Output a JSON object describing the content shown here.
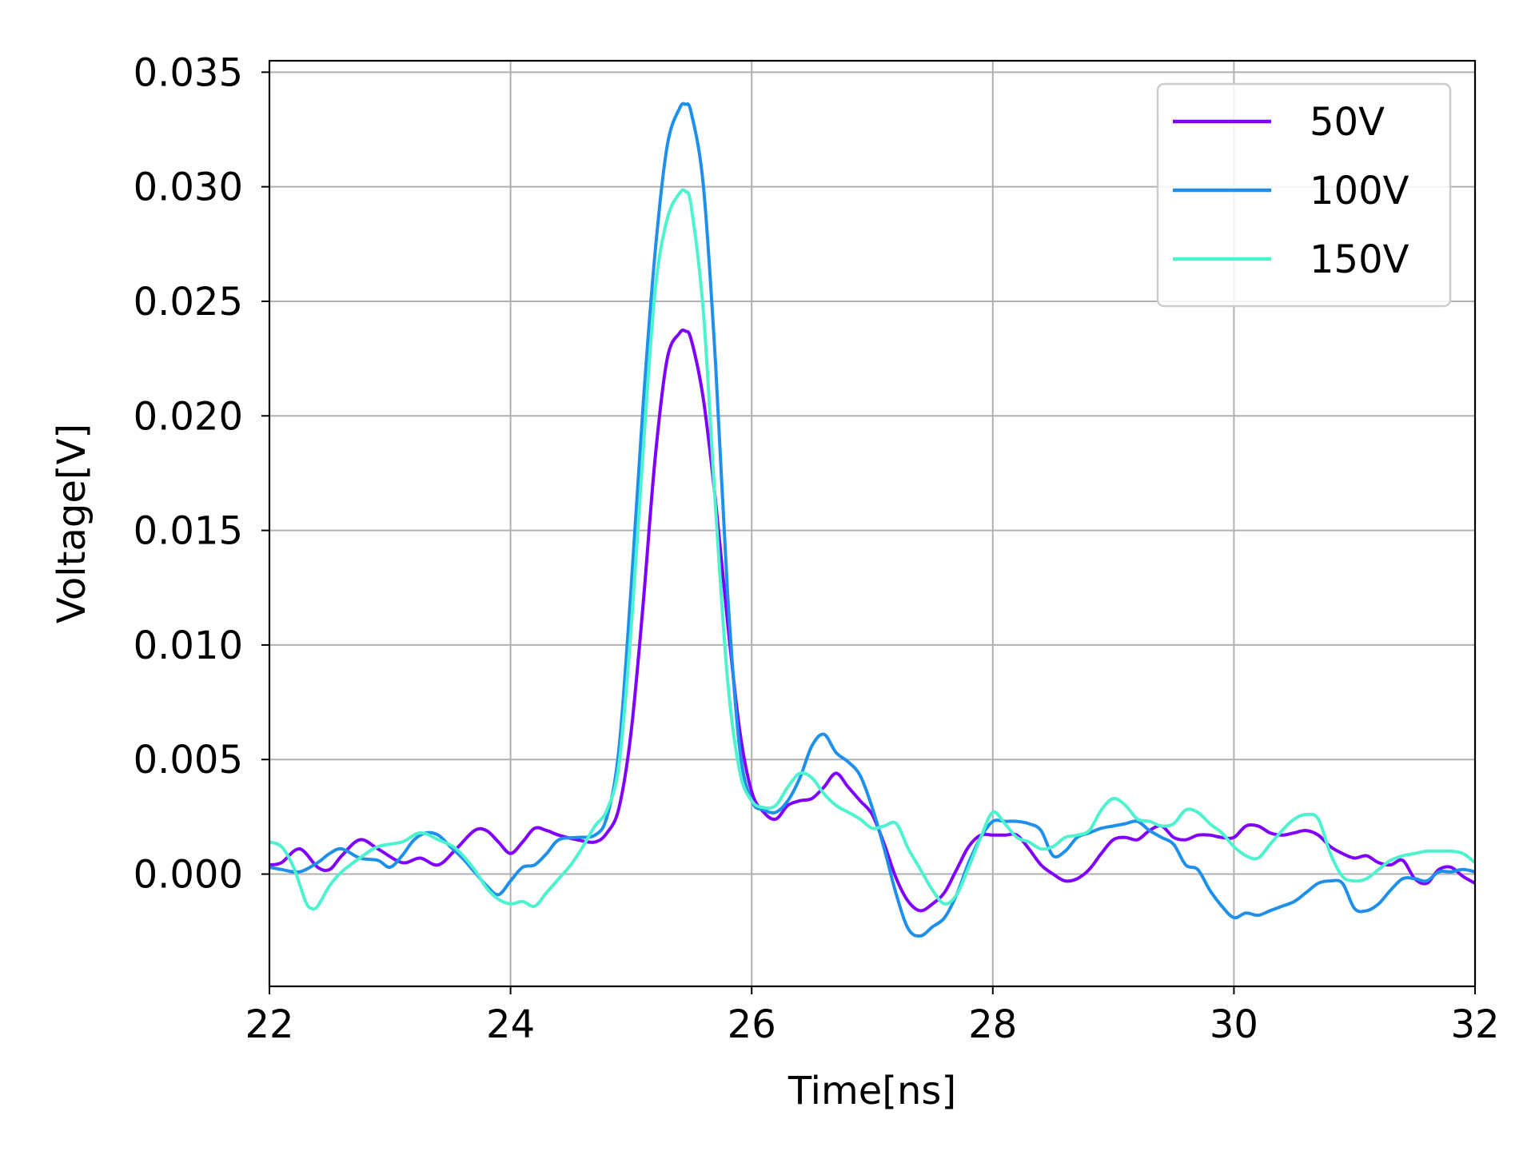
{
  "chart_data": {
    "type": "line",
    "xlabel": "Time[ns]",
    "ylabel": "Voltage[V]",
    "xlim": [
      22,
      32
    ],
    "ylim": [
      -0.0049,
      0.0355
    ],
    "xticks": [
      22,
      24,
      26,
      28,
      30,
      32
    ],
    "xtick_labels": [
      "22",
      "24",
      "26",
      "28",
      "30",
      "32"
    ],
    "yticks": [
      0.0,
      0.005,
      0.01,
      0.015,
      0.02,
      0.025,
      0.03,
      0.035
    ],
    "ytick_labels": [
      "0.000",
      "0.005",
      "0.010",
      "0.015",
      "0.020",
      "0.025",
      "0.030",
      "0.035"
    ],
    "grid": true,
    "legend_position": "top-right",
    "series": [
      {
        "name": "50V",
        "color": "#8000ff",
        "x": [
          22.0,
          22.1,
          22.25,
          22.4,
          22.5,
          22.6,
          22.75,
          22.9,
          23.1,
          23.25,
          23.4,
          23.55,
          23.7,
          23.8,
          23.9,
          24.0,
          24.1,
          24.2,
          24.3,
          24.4,
          24.55,
          24.7,
          24.8,
          24.9,
          25.0,
          25.1,
          25.2,
          25.3,
          25.4,
          25.45,
          25.5,
          25.6,
          25.7,
          25.8,
          25.9,
          26.0,
          26.1,
          26.2,
          26.3,
          26.4,
          26.5,
          26.6,
          26.7,
          26.8,
          26.9,
          27.0,
          27.1,
          27.2,
          27.3,
          27.4,
          27.5,
          27.6,
          27.7,
          27.8,
          27.9,
          28.0,
          28.1,
          28.2,
          28.3,
          28.4,
          28.5,
          28.6,
          28.7,
          28.8,
          28.9,
          29.0,
          29.1,
          29.2,
          29.3,
          29.4,
          29.5,
          29.6,
          29.7,
          29.8,
          29.9,
          30.0,
          30.1,
          30.2,
          30.3,
          30.4,
          30.5,
          30.6,
          30.7,
          30.8,
          30.9,
          31.0,
          31.1,
          31.2,
          31.3,
          31.4,
          31.5,
          31.6,
          31.7,
          31.8,
          31.9,
          32.0
        ],
        "y": [
          0.0004,
          0.0005,
          0.0011,
          0.0003,
          0.0002,
          0.0008,
          0.0015,
          0.0011,
          0.0005,
          0.0007,
          0.0004,
          0.0011,
          0.0019,
          0.0019,
          0.0014,
          0.0009,
          0.0014,
          0.002,
          0.0019,
          0.0017,
          0.0015,
          0.0014,
          0.0018,
          0.0029,
          0.0062,
          0.0118,
          0.0182,
          0.0225,
          0.0236,
          0.0237,
          0.0233,
          0.0207,
          0.0163,
          0.011,
          0.0063,
          0.0036,
          0.0027,
          0.0024,
          0.003,
          0.0032,
          0.0033,
          0.0038,
          0.0044,
          0.0038,
          0.0032,
          0.0026,
          0.0013,
          -0.0002,
          -0.0012,
          -0.0016,
          -0.0013,
          -0.0008,
          0.0002,
          0.0012,
          0.0017,
          0.0017,
          0.0017,
          0.0017,
          0.0011,
          0.0004,
          0.0,
          -0.0003,
          -0.0002,
          0.0002,
          0.0009,
          0.0015,
          0.0016,
          0.0015,
          0.0019,
          0.0021,
          0.0016,
          0.0015,
          0.0017,
          0.0017,
          0.0016,
          0.0016,
          0.0021,
          0.0021,
          0.0018,
          0.0017,
          0.0018,
          0.0019,
          0.0017,
          0.0012,
          0.0009,
          0.0007,
          0.0008,
          0.0005,
          0.0004,
          0.0006,
          -0.0002,
          -0.0004,
          0.0002,
          0.0003,
          -0.0001,
          -0.0004
        ]
      },
      {
        "name": "100V",
        "color": "#1e90ec",
        "x": [
          22.0,
          22.1,
          22.25,
          22.4,
          22.5,
          22.6,
          22.75,
          22.9,
          23.0,
          23.1,
          23.2,
          23.3,
          23.4,
          23.5,
          23.6,
          23.7,
          23.8,
          23.9,
          24.0,
          24.1,
          24.2,
          24.3,
          24.4,
          24.55,
          24.7,
          24.8,
          24.9,
          25.0,
          25.1,
          25.2,
          25.3,
          25.4,
          25.45,
          25.5,
          25.6,
          25.7,
          25.8,
          25.9,
          26.0,
          26.1,
          26.2,
          26.3,
          26.4,
          26.5,
          26.6,
          26.7,
          26.8,
          26.9,
          27.0,
          27.1,
          27.2,
          27.3,
          27.4,
          27.5,
          27.6,
          27.7,
          27.8,
          27.9,
          28.0,
          28.1,
          28.2,
          28.3,
          28.4,
          28.5,
          28.6,
          28.7,
          28.8,
          28.9,
          29.0,
          29.1,
          29.2,
          29.3,
          29.4,
          29.5,
          29.6,
          29.7,
          29.8,
          29.9,
          30.0,
          30.1,
          30.2,
          30.3,
          30.4,
          30.5,
          30.6,
          30.7,
          30.8,
          30.9,
          31.0,
          31.1,
          31.2,
          31.3,
          31.4,
          31.5,
          31.6,
          31.7,
          31.8,
          31.9,
          32.0
        ],
        "y": [
          0.0003,
          0.0002,
          0.0001,
          0.0005,
          0.0009,
          0.0011,
          0.0007,
          0.0006,
          0.0003,
          0.0008,
          0.0015,
          0.0018,
          0.0017,
          0.0012,
          0.0007,
          0.0001,
          -0.0005,
          -0.0009,
          -0.0003,
          0.0003,
          0.0004,
          0.0009,
          0.0015,
          0.0016,
          0.0017,
          0.0025,
          0.0055,
          0.0125,
          0.0205,
          0.0272,
          0.0318,
          0.0334,
          0.0336,
          0.0332,
          0.03,
          0.0223,
          0.0123,
          0.0055,
          0.0032,
          0.0028,
          0.0027,
          0.0032,
          0.0042,
          0.0056,
          0.0061,
          0.0053,
          0.0049,
          0.0043,
          0.0029,
          0.0011,
          -0.0009,
          -0.0024,
          -0.0027,
          -0.0023,
          -0.0019,
          -0.0009,
          0.0005,
          0.0016,
          0.0023,
          0.0023,
          0.0023,
          0.0022,
          0.0019,
          0.0008,
          0.001,
          0.0016,
          0.0018,
          0.002,
          0.0021,
          0.0022,
          0.0023,
          0.0019,
          0.0016,
          0.0013,
          0.0004,
          0.0002,
          -0.0007,
          -0.0014,
          -0.0019,
          -0.0017,
          -0.0018,
          -0.0016,
          -0.0014,
          -0.0012,
          -0.0008,
          -0.0004,
          -0.0003,
          -0.0004,
          -0.0015,
          -0.0016,
          -0.0013,
          -0.0007,
          -0.0002,
          -0.0002,
          -0.0003,
          0.0001,
          0.0001,
          0.0002,
          0.0001
        ]
      },
      {
        "name": "150V",
        "color": "#4df3ce",
        "x": [
          22.0,
          22.1,
          22.2,
          22.3,
          22.35,
          22.4,
          22.5,
          22.6,
          22.75,
          22.9,
          23.1,
          23.25,
          23.4,
          23.55,
          23.7,
          23.8,
          23.9,
          24.0,
          24.1,
          24.2,
          24.3,
          24.4,
          24.5,
          24.6,
          24.7,
          24.8,
          24.9,
          25.0,
          25.1,
          25.2,
          25.3,
          25.4,
          25.45,
          25.5,
          25.6,
          25.7,
          25.8,
          25.9,
          26.0,
          26.1,
          26.2,
          26.3,
          26.4,
          26.5,
          26.6,
          26.7,
          26.8,
          26.9,
          27.0,
          27.1,
          27.2,
          27.3,
          27.4,
          27.5,
          27.6,
          27.7,
          27.8,
          27.9,
          28.0,
          28.1,
          28.2,
          28.3,
          28.4,
          28.5,
          28.6,
          28.7,
          28.8,
          28.9,
          29.0,
          29.1,
          29.2,
          29.3,
          29.4,
          29.5,
          29.6,
          29.7,
          29.8,
          29.9,
          30.0,
          30.1,
          30.2,
          30.3,
          30.4,
          30.5,
          30.6,
          30.7,
          30.8,
          30.9,
          31.0,
          31.1,
          31.2,
          31.3,
          31.4,
          31.5,
          31.6,
          31.7,
          31.8,
          31.9,
          32.0
        ],
        "y": [
          0.0014,
          0.0012,
          0.0003,
          -0.0012,
          -0.0015,
          -0.0014,
          -0.0005,
          0.0001,
          0.0007,
          0.0012,
          0.0014,
          0.0018,
          0.0015,
          0.0011,
          0.0002,
          -0.0006,
          -0.0011,
          -0.0013,
          -0.0012,
          -0.0014,
          -0.0008,
          -0.0002,
          0.0004,
          0.0012,
          0.0021,
          0.0028,
          0.0048,
          0.0107,
          0.0185,
          0.0255,
          0.0286,
          0.0297,
          0.0298,
          0.0291,
          0.0245,
          0.016,
          0.0085,
          0.0045,
          0.0032,
          0.0029,
          0.003,
          0.0038,
          0.0044,
          0.0042,
          0.0035,
          0.003,
          0.0027,
          0.0024,
          0.002,
          0.0021,
          0.0022,
          0.0011,
          0.0002,
          -0.0007,
          -0.0013,
          -0.0009,
          0.0003,
          0.0016,
          0.0027,
          0.0022,
          0.0016,
          0.0014,
          0.0011,
          0.0012,
          0.0016,
          0.0017,
          0.0019,
          0.0028,
          0.0033,
          0.003,
          0.0024,
          0.0023,
          0.0021,
          0.0022,
          0.0028,
          0.0027,
          0.0022,
          0.0018,
          0.0012,
          0.0008,
          0.0007,
          0.0013,
          0.0019,
          0.0024,
          0.0026,
          0.0024,
          0.0009,
          -0.0001,
          -0.0003,
          -0.0002,
          0.0002,
          0.0006,
          0.0008,
          0.0009,
          0.001,
          0.001,
          0.001,
          0.0009,
          0.0005
        ]
      }
    ]
  }
}
